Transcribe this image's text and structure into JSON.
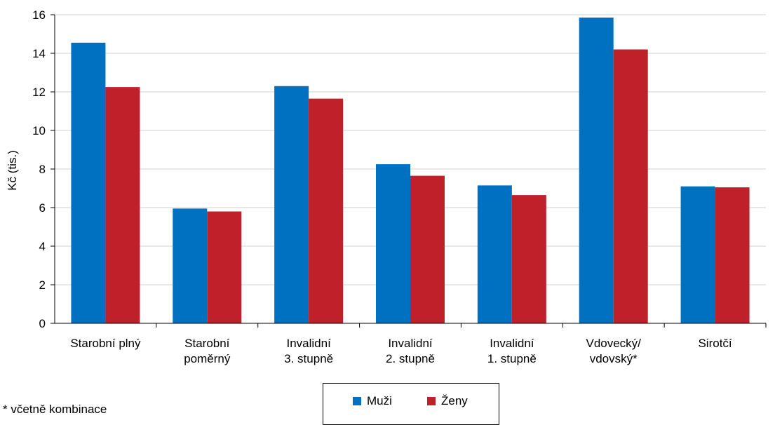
{
  "chart_data": {
    "type": "bar",
    "categories": [
      [
        "Starobní plný"
      ],
      [
        "Starobní",
        "poměrný"
      ],
      [
        "Invalidní",
        "3. stupně"
      ],
      [
        "Invalidní",
        "2. stupně"
      ],
      [
        "Invalidní",
        "1. stupně"
      ],
      [
        "Vdovecký/",
        "vdovský*"
      ],
      [
        "Sirotčí"
      ]
    ],
    "series": [
      {
        "name": "Muži",
        "color": "#0070C0",
        "values": [
          14.55,
          5.95,
          12.3,
          8.25,
          7.15,
          15.85,
          7.1
        ]
      },
      {
        "name": "Ženy",
        "color": "#C0202A",
        "values": [
          12.25,
          5.8,
          11.65,
          7.65,
          6.65,
          14.2,
          7.05
        ]
      }
    ],
    "ylabel": "Kč (tis.)",
    "ylim": [
      0,
      16
    ],
    "yticks": [
      0,
      2,
      4,
      6,
      8,
      10,
      12,
      14,
      16
    ],
    "grid": true,
    "legend": "bottom"
  },
  "footnote": "* včetně kombinace"
}
